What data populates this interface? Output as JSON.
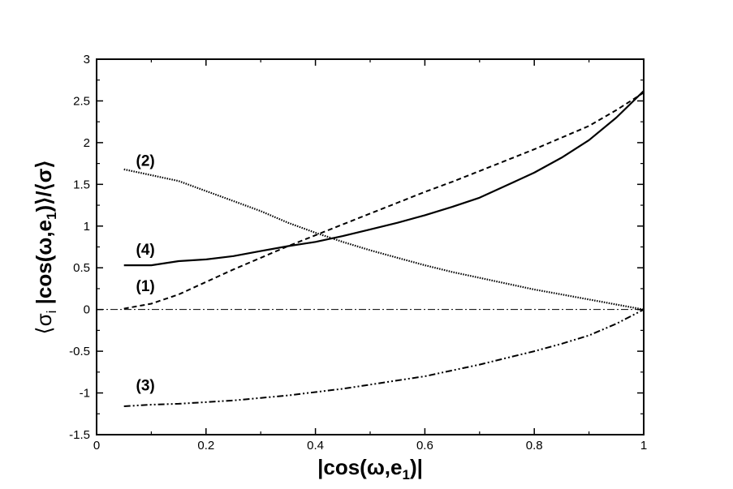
{
  "chart_data": {
    "type": "line",
    "title": "",
    "xlabel": {
      "main": "|cos(ω,e",
      "sub": "1",
      "tail": ")|"
    },
    "ylabel": {
      "open": "⟨σ",
      "sub1": "i",
      "middle": " |cos(ω,e",
      "sub2": "1",
      "tail": ")⟩/⟨σ⟩"
    },
    "xlim": [
      0,
      1
    ],
    "ylim": [
      -1.5,
      3
    ],
    "xticks": [
      0,
      0.2,
      0.4,
      0.6,
      0.8,
      1
    ],
    "xtick_labels": [
      "0",
      "0.2",
      "0.4",
      "0.6",
      "0.8",
      "1"
    ],
    "yticks": [
      -1.5,
      -1,
      -0.5,
      0,
      0.5,
      1,
      1.5,
      2,
      2.5,
      3
    ],
    "ytick_labels": [
      "-1.5",
      "-1",
      "-0.5",
      "0",
      "0.5",
      "1",
      "1.5",
      "2",
      "2.5",
      "3"
    ],
    "grid": false,
    "reference_line": {
      "y": 0,
      "style": "dash-dot"
    },
    "series": [
      {
        "label": "(1)",
        "style": "dashed",
        "label_at": [
          0.072,
          0.22
        ],
        "x": [
          0.05,
          0.1,
          0.15,
          0.2,
          0.25,
          0.3,
          0.35,
          0.4,
          0.45,
          0.5,
          0.55,
          0.6,
          0.65,
          0.7,
          0.75,
          0.8,
          0.85,
          0.9,
          0.95,
          1.0
        ],
        "y": [
          0.01,
          0.07,
          0.18,
          0.33,
          0.48,
          0.62,
          0.76,
          0.89,
          1.02,
          1.15,
          1.28,
          1.41,
          1.53,
          1.66,
          1.79,
          1.92,
          2.06,
          2.2,
          2.39,
          2.6
        ]
      },
      {
        "label": "(2)",
        "style": "dotted",
        "label_at": [
          0.072,
          1.72
        ],
        "x": [
          0.05,
          0.1,
          0.15,
          0.2,
          0.25,
          0.3,
          0.35,
          0.4,
          0.45,
          0.5,
          0.55,
          0.6,
          0.65,
          0.7,
          0.75,
          0.8,
          0.85,
          0.9,
          0.95,
          1.0
        ],
        "y": [
          1.68,
          1.61,
          1.54,
          1.42,
          1.3,
          1.18,
          1.04,
          0.92,
          0.81,
          0.71,
          0.62,
          0.53,
          0.45,
          0.38,
          0.31,
          0.24,
          0.18,
          0.12,
          0.06,
          0.0
        ]
      },
      {
        "label": "(3)",
        "style": "dash-dot-dot",
        "label_at": [
          0.072,
          -0.97
        ],
        "x": [
          0.05,
          0.1,
          0.15,
          0.2,
          0.25,
          0.3,
          0.35,
          0.4,
          0.45,
          0.5,
          0.55,
          0.6,
          0.65,
          0.7,
          0.75,
          0.8,
          0.85,
          0.9,
          0.95,
          1.0
        ],
        "y": [
          -1.16,
          -1.14,
          -1.13,
          -1.11,
          -1.09,
          -1.06,
          -1.03,
          -0.99,
          -0.95,
          -0.9,
          -0.85,
          -0.8,
          -0.73,
          -0.66,
          -0.58,
          -0.5,
          -0.41,
          -0.31,
          -0.17,
          0.0
        ]
      },
      {
        "label": "(4)",
        "style": "solid",
        "label_at": [
          0.072,
          0.66
        ],
        "x": [
          0.05,
          0.1,
          0.15,
          0.2,
          0.25,
          0.3,
          0.35,
          0.4,
          0.45,
          0.5,
          0.55,
          0.6,
          0.65,
          0.7,
          0.75,
          0.8,
          0.85,
          0.9,
          0.95,
          1.0
        ],
        "y": [
          0.53,
          0.53,
          0.58,
          0.6,
          0.64,
          0.7,
          0.76,
          0.81,
          0.88,
          0.96,
          1.04,
          1.13,
          1.23,
          1.34,
          1.49,
          1.64,
          1.82,
          2.03,
          2.3,
          2.62
        ]
      }
    ]
  }
}
